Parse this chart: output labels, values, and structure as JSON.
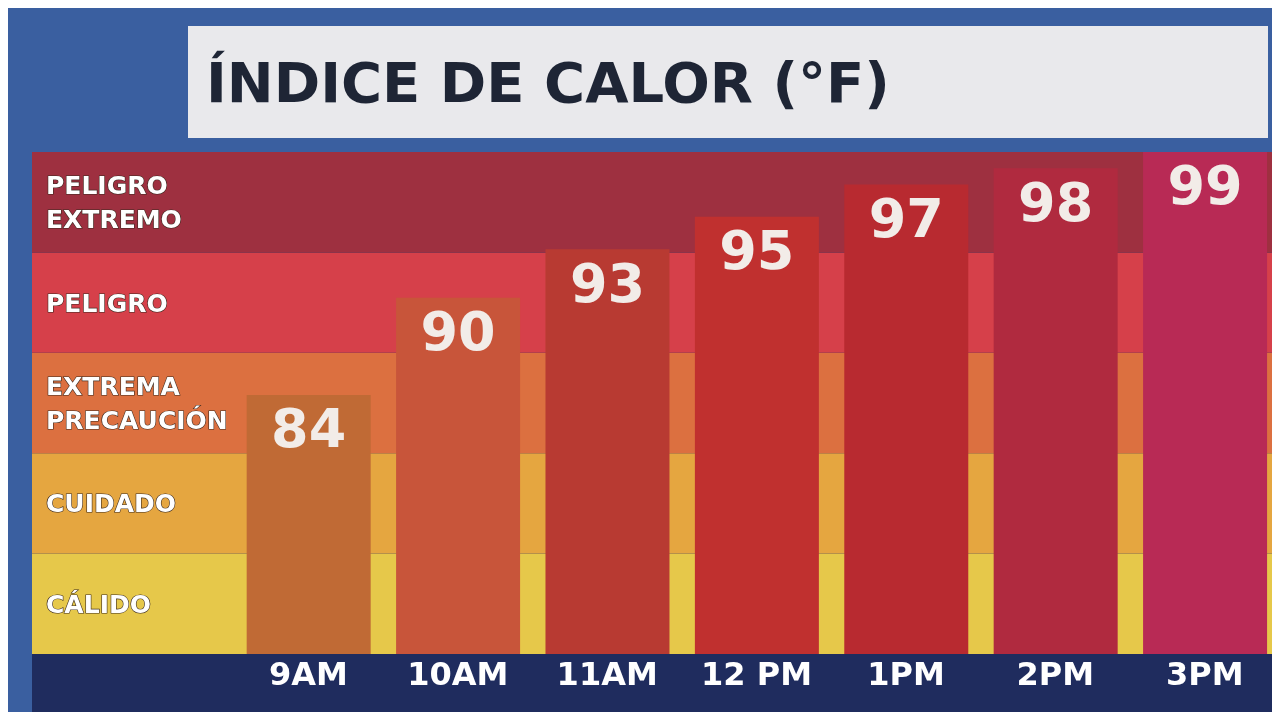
{
  "chart_data": {
    "type": "bar",
    "title": "ÍNDICE DE CALOR (°F)",
    "categories": [
      "9AM",
      "10AM",
      "11AM",
      "12 PM",
      "1PM",
      "2PM",
      "3PM"
    ],
    "values": [
      84,
      90,
      93,
      95,
      97,
      98,
      99
    ],
    "colors": [
      "#c06a35",
      "#c8553a",
      "#b83a32",
      "#c0302f",
      "#b82a30",
      "#b02a3f",
      "#b82a55"
    ],
    "data_labels": true,
    "ylim": [
      68,
      99
    ],
    "tick_labels": "x",
    "bands": [
      {
        "axis": "y",
        "from": 68,
        "to": 74.2,
        "label": "CÁLIDO",
        "color": "#e6c84a"
      },
      {
        "axis": "y",
        "from": 74.2,
        "to": 80.4,
        "label": "CUIDADO",
        "color": "#e5a640"
      },
      {
        "axis": "y",
        "from": 80.4,
        "to": 86.6,
        "label": "EXTREMA PRECAUCIÓN",
        "color": "#dc7040"
      },
      {
        "axis": "y",
        "from": 86.6,
        "to": 92.8,
        "label": "PELIGRO",
        "color": "#d6404a"
      },
      {
        "axis": "y",
        "from": 92.8,
        "to": 99,
        "label": "PELIGRO EXTREMO",
        "color": "#9e3040"
      }
    ]
  }
}
